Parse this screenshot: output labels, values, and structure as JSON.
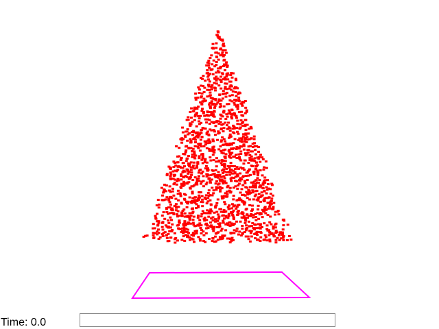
{
  "scene": {
    "particle_color": "#ff0000",
    "outline_color": "#ff00ff",
    "background_color": "#ffffff"
  },
  "timeline": {
    "label_prefix": "Time:",
    "value": "0.0",
    "progress": 0
  }
}
